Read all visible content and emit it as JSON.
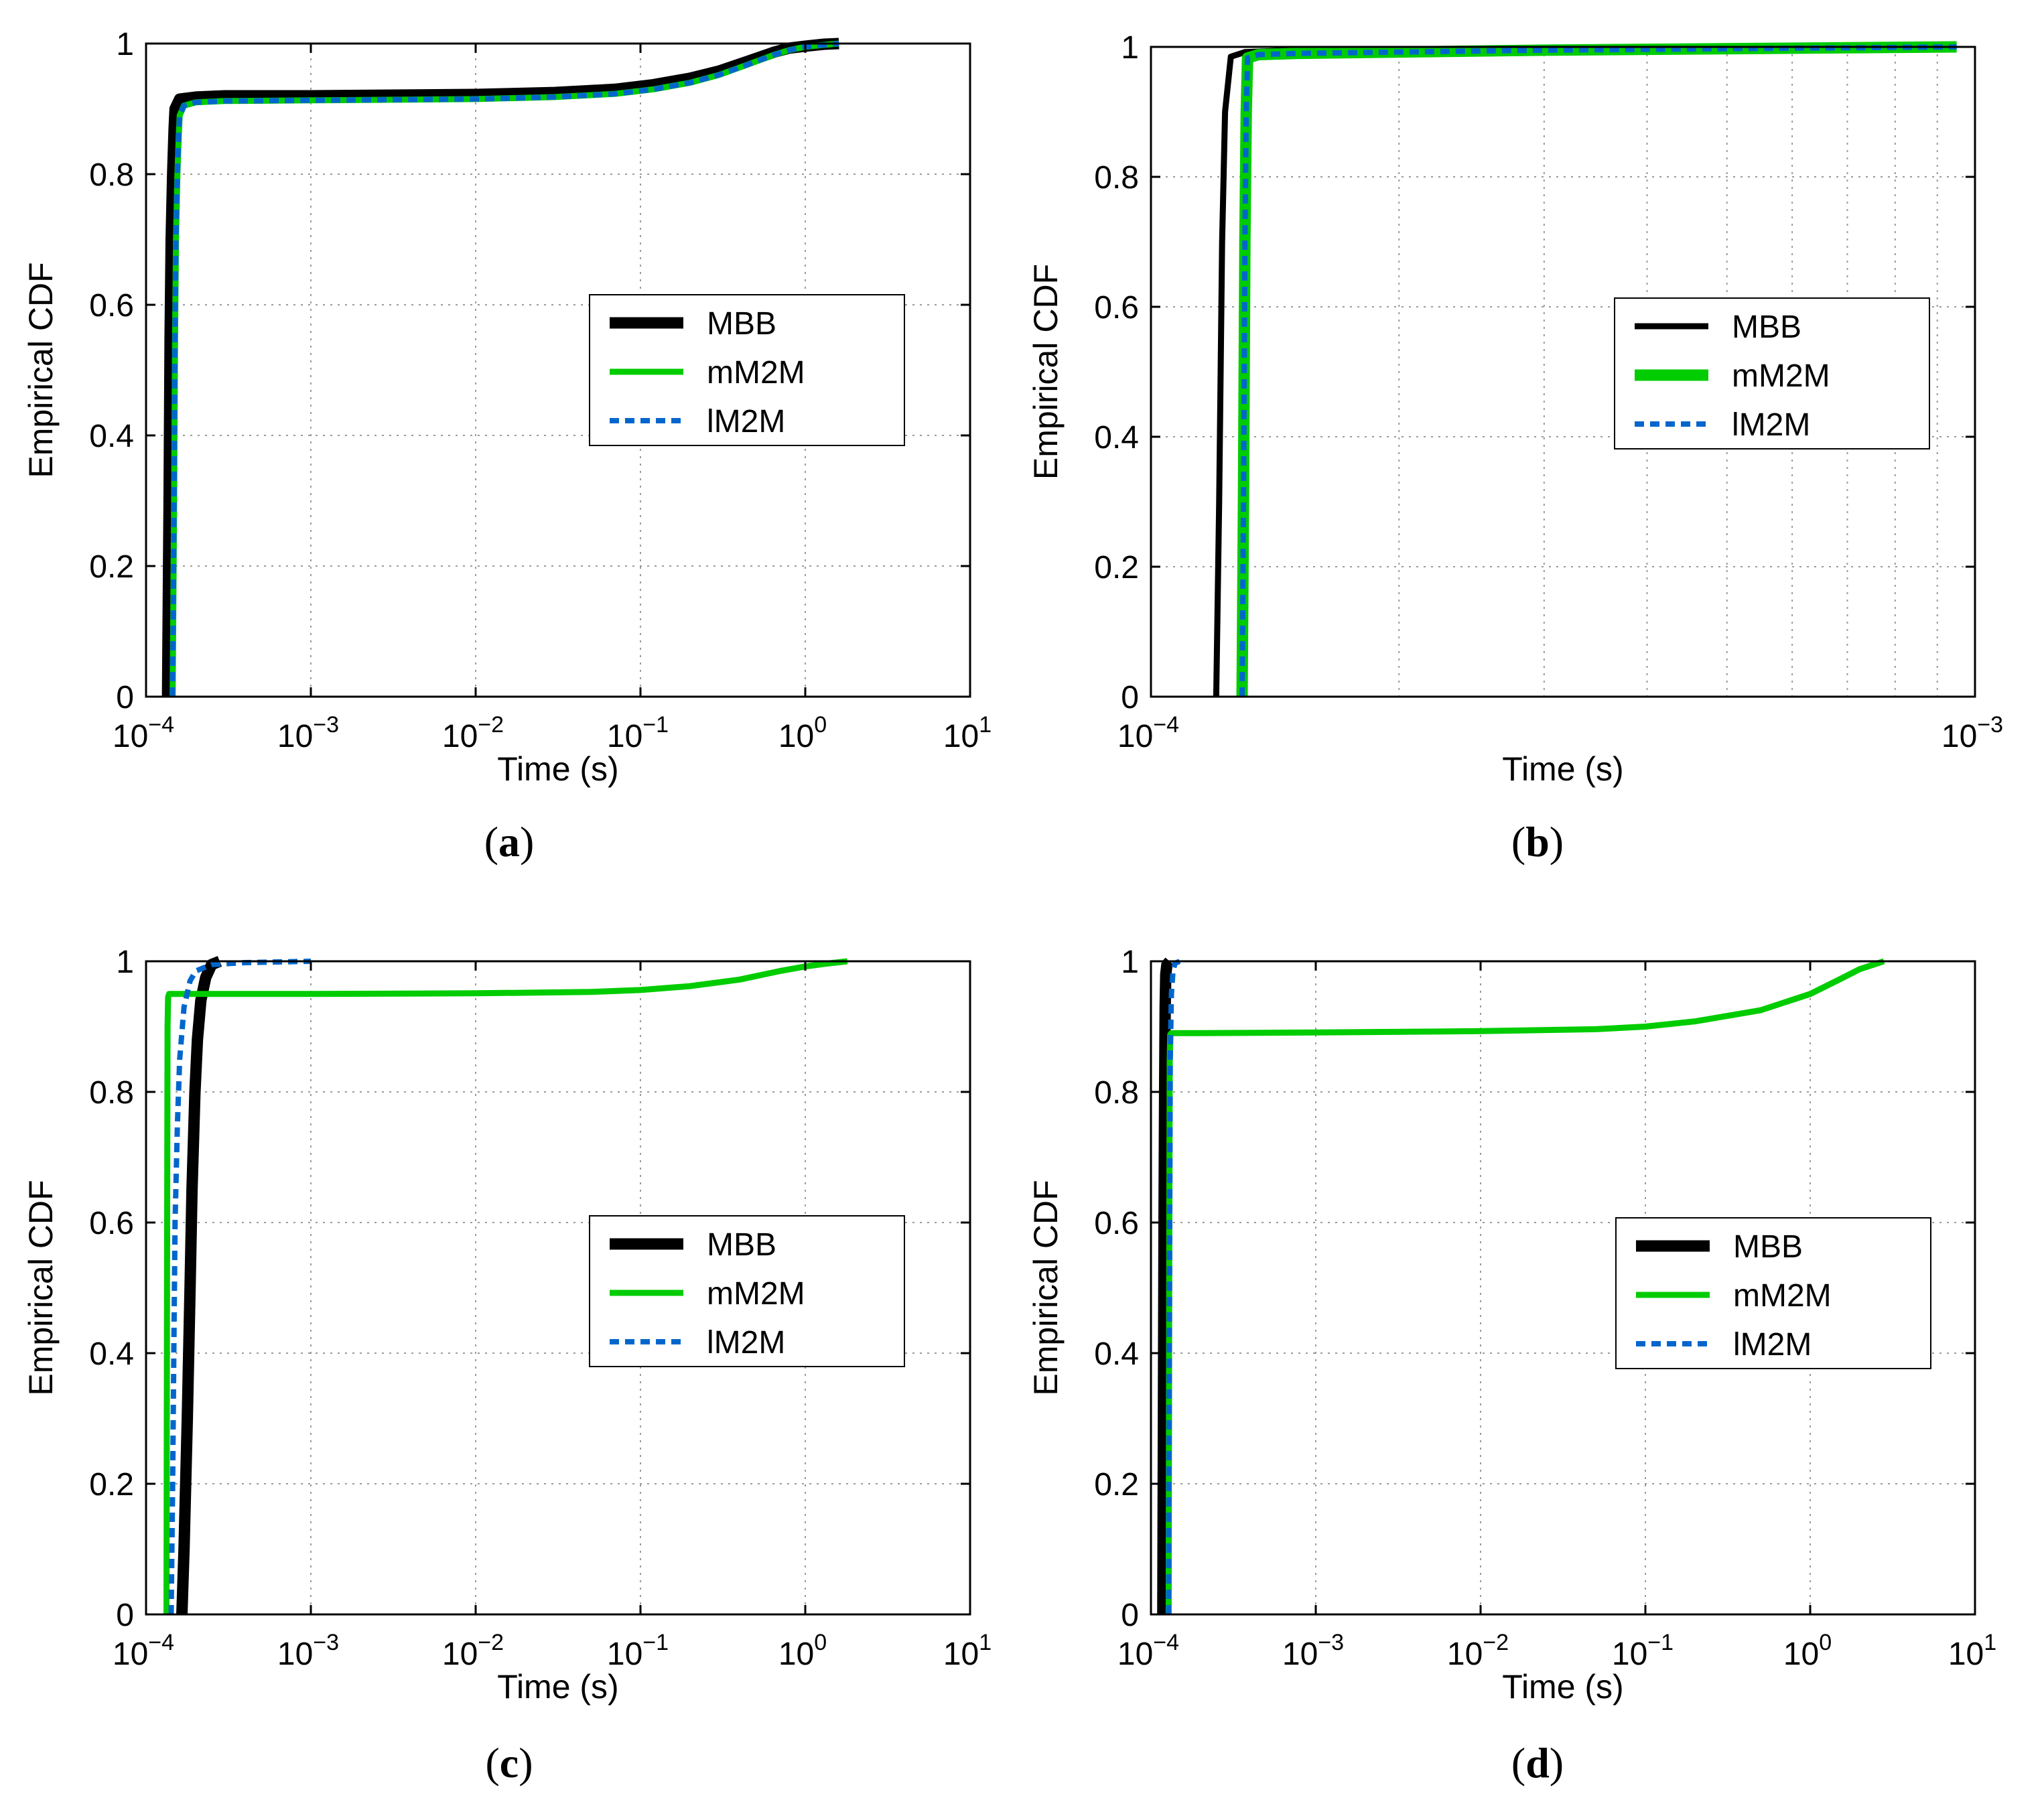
{
  "colors": {
    "MBB": "#000000",
    "mM2M": "#00cc00",
    "lM2M": "#0066cc",
    "grid": "#9a9a9a",
    "axis": "#000000"
  },
  "chart_data": [
    {
      "panel": "a",
      "caption_letter": "a",
      "type": "line",
      "xscale": "log",
      "xlabel": "Time (s)",
      "ylabel": "Empirical CDF",
      "xlim": [
        0.0001,
        10
      ],
      "ylim": [
        0,
        1
      ],
      "xticks": [
        {
          "value": 0.0001,
          "base": "10",
          "exp": "−4"
        },
        {
          "value": 0.001,
          "base": "10",
          "exp": "−3"
        },
        {
          "value": 0.01,
          "base": "10",
          "exp": "−2"
        },
        {
          "value": 0.1,
          "base": "10",
          "exp": "−1"
        },
        {
          "value": 1,
          "base": "10",
          "exp": "0"
        },
        {
          "value": 10,
          "base": "10",
          "exp": "1"
        }
      ],
      "yticks": [
        {
          "value": 0,
          "label": "0"
        },
        {
          "value": 0.2,
          "label": "0.2"
        },
        {
          "value": 0.4,
          "label": "0.4"
        },
        {
          "value": 0.6,
          "label": "0.6"
        },
        {
          "value": 0.8,
          "label": "0.8"
        },
        {
          "value": 1,
          "label": "1"
        }
      ],
      "minor_grid": false,
      "legend": {
        "position": "center-right"
      },
      "series": [
        {
          "name": "MBB",
          "style": "solid",
          "weight": "thick",
          "x": [
            0.000135,
            0.000138,
            0.00014,
            0.000142,
            0.000145,
            0.000148,
            0.00015,
            0.00016,
            0.0002,
            0.0003,
            0.001,
            0.01,
            0.03,
            0.07,
            0.12,
            0.2,
            0.3,
            0.45,
            0.65,
            0.8,
            1.0,
            1.3,
            1.6
          ],
          "y": [
            0,
            0.3,
            0.55,
            0.7,
            0.8,
            0.87,
            0.9,
            0.915,
            0.918,
            0.92,
            0.92,
            0.922,
            0.925,
            0.93,
            0.937,
            0.947,
            0.958,
            0.973,
            0.987,
            0.993,
            0.996,
            0.999,
            1.0
          ]
        },
        {
          "name": "mM2M",
          "style": "solid",
          "weight": "medium",
          "x": [
            0.000145,
            0.000148,
            0.00015,
            0.000152,
            0.000155,
            0.000158,
            0.00016,
            0.00017,
            0.0002,
            0.0003,
            0.001,
            0.01,
            0.03,
            0.07,
            0.12,
            0.2,
            0.3,
            0.45,
            0.65,
            0.8,
            1.0,
            1.3,
            1.6
          ],
          "y": [
            0,
            0.3,
            0.55,
            0.7,
            0.8,
            0.86,
            0.89,
            0.905,
            0.91,
            0.912,
            0.913,
            0.915,
            0.918,
            0.923,
            0.93,
            0.94,
            0.952,
            0.968,
            0.983,
            0.99,
            0.995,
            0.998,
            1.0
          ]
        },
        {
          "name": "lM2M",
          "style": "dashed",
          "weight": "medium",
          "x": [
            0.000145,
            0.000148,
            0.00015,
            0.000152,
            0.000155,
            0.000158,
            0.00016,
            0.00017,
            0.0002,
            0.0003,
            0.001,
            0.01,
            0.03,
            0.07,
            0.12,
            0.2,
            0.3,
            0.45,
            0.65,
            0.8,
            1.0,
            1.3,
            1.6
          ],
          "y": [
            0,
            0.3,
            0.55,
            0.7,
            0.8,
            0.86,
            0.89,
            0.905,
            0.91,
            0.912,
            0.913,
            0.915,
            0.918,
            0.923,
            0.93,
            0.94,
            0.952,
            0.968,
            0.983,
            0.99,
            0.995,
            0.998,
            1.0
          ]
        }
      ]
    },
    {
      "panel": "b",
      "caption_letter": "b",
      "type": "line",
      "xscale": "log",
      "xlabel": "Time (s)",
      "ylabel": "Empirical CDF",
      "xlim": [
        0.0001,
        0.001
      ],
      "ylim": [
        0,
        1
      ],
      "xticks": [
        {
          "value": 0.0001,
          "base": "10",
          "exp": "−4"
        },
        {
          "value": 0.001,
          "base": "10",
          "exp": "−3"
        }
      ],
      "yticks": [
        {
          "value": 0,
          "label": "0"
        },
        {
          "value": 0.2,
          "label": "0.2"
        },
        {
          "value": 0.4,
          "label": "0.4"
        },
        {
          "value": 0.6,
          "label": "0.6"
        },
        {
          "value": 0.8,
          "label": "0.8"
        },
        {
          "value": 1,
          "label": "1"
        }
      ],
      "minor_grid": true,
      "legend": {
        "position": "center-right"
      },
      "series": [
        {
          "name": "MBB",
          "style": "solid",
          "weight": "medium",
          "x": [
            0.00012,
            0.000121,
            0.000122,
            0.000123,
            0.000125,
            0.00013,
            0.00015,
            0.0003,
            0.00095
          ],
          "y": [
            0,
            0.3,
            0.7,
            0.9,
            0.985,
            0.992,
            0.995,
            0.998,
            1.0
          ]
        },
        {
          "name": "mM2M",
          "style": "solid",
          "weight": "thick",
          "x": [
            0.000129,
            0.0001295,
            0.00013,
            0.0001305,
            0.000131,
            0.000135,
            0.00015,
            0.0003,
            0.00095
          ],
          "y": [
            0,
            0.3,
            0.7,
            0.9,
            0.983,
            0.988,
            0.99,
            0.995,
            1.0
          ]
        },
        {
          "name": "lM2M",
          "style": "dashed",
          "weight": "medium",
          "x": [
            0.000129,
            0.0001295,
            0.00013,
            0.0001305,
            0.000131,
            0.000135,
            0.00015,
            0.0003,
            0.00095
          ],
          "y": [
            0,
            0.3,
            0.7,
            0.9,
            0.983,
            0.988,
            0.99,
            0.995,
            1.0
          ]
        }
      ]
    },
    {
      "panel": "c",
      "caption_letter": "c",
      "type": "line",
      "xscale": "log",
      "xlabel": "Time (s)",
      "ylabel": "Empirical CDF",
      "xlim": [
        0.0001,
        10
      ],
      "ylim": [
        0,
        1
      ],
      "xticks": [
        {
          "value": 0.0001,
          "base": "10",
          "exp": "−4"
        },
        {
          "value": 0.001,
          "base": "10",
          "exp": "−3"
        },
        {
          "value": 0.01,
          "base": "10",
          "exp": "−2"
        },
        {
          "value": 0.1,
          "base": "10",
          "exp": "−1"
        },
        {
          "value": 1,
          "base": "10",
          "exp": "0"
        },
        {
          "value": 10,
          "base": "10",
          "exp": "1"
        }
      ],
      "yticks": [
        {
          "value": 0,
          "label": "0"
        },
        {
          "value": 0.2,
          "label": "0.2"
        },
        {
          "value": 0.4,
          "label": "0.4"
        },
        {
          "value": 0.6,
          "label": "0.6"
        },
        {
          "value": 0.8,
          "label": "0.8"
        },
        {
          "value": 1,
          "label": "1"
        }
      ],
      "minor_grid": false,
      "legend": {
        "position": "center-right"
      },
      "series": [
        {
          "name": "MBB",
          "style": "solid",
          "weight": "thick",
          "x": [
            0.000165,
            0.00017,
            0.000178,
            0.000185,
            0.00019,
            0.000198,
            0.000205,
            0.000215,
            0.00023,
            0.00025,
            0.00028
          ],
          "y": [
            0,
            0.1,
            0.3,
            0.5,
            0.65,
            0.8,
            0.88,
            0.94,
            0.975,
            0.995,
            1.0
          ]
        },
        {
          "name": "mM2M",
          "style": "solid",
          "weight": "medium",
          "x": [
            0.000133,
            0.000134,
            0.000135,
            0.000136,
            0.000138,
            0.0002,
            0.001,
            0.01,
            0.05,
            0.1,
            0.2,
            0.4,
            0.7,
            1.0,
            1.3,
            1.8
          ],
          "y": [
            0,
            0.5,
            0.9,
            0.945,
            0.95,
            0.95,
            0.95,
            0.951,
            0.953,
            0.956,
            0.962,
            0.972,
            0.985,
            0.992,
            0.996,
            1.0
          ]
        },
        {
          "name": "lM2M",
          "style": "dashed",
          "weight": "medium",
          "x": [
            0.000142,
            0.000145,
            0.000148,
            0.00015,
            0.000155,
            0.00016,
            0.00017,
            0.000185,
            0.0002,
            0.00025,
            0.0004,
            0.001
          ],
          "y": [
            0,
            0.2,
            0.45,
            0.6,
            0.75,
            0.85,
            0.93,
            0.97,
            0.985,
            0.995,
            0.998,
            1.0
          ]
        }
      ]
    },
    {
      "panel": "d",
      "caption_letter": "d",
      "type": "line",
      "xscale": "log",
      "xlabel": "Time (s)",
      "ylabel": "Empirical CDF",
      "xlim": [
        0.0001,
        10
      ],
      "ylim": [
        0,
        1
      ],
      "xticks": [
        {
          "value": 0.0001,
          "base": "10",
          "exp": "−4"
        },
        {
          "value": 0.001,
          "base": "10",
          "exp": "−3"
        },
        {
          "value": 0.01,
          "base": "10",
          "exp": "−2"
        },
        {
          "value": 0.1,
          "base": "10",
          "exp": "−1"
        },
        {
          "value": 1,
          "base": "10",
          "exp": "0"
        },
        {
          "value": 10,
          "base": "10",
          "exp": "1"
        }
      ],
      "yticks": [
        {
          "value": 0,
          "label": "0"
        },
        {
          "value": 0.2,
          "label": "0.2"
        },
        {
          "value": 0.4,
          "label": "0.4"
        },
        {
          "value": 0.6,
          "label": "0.6"
        },
        {
          "value": 0.8,
          "label": "0.8"
        },
        {
          "value": 1,
          "label": "1"
        }
      ],
      "minor_grid": false,
      "legend": {
        "position": "center-right"
      },
      "series": [
        {
          "name": "MBB",
          "style": "solid",
          "weight": "thick",
          "x": [
            0.000118,
            0.000119,
            0.00012,
            0.000121,
            0.000122,
            0.000123,
            0.000125,
            0.00013
          ],
          "y": [
            0,
            0.3,
            0.6,
            0.8,
            0.93,
            0.98,
            0.995,
            1.0
          ]
        },
        {
          "name": "mM2M",
          "style": "solid",
          "weight": "medium",
          "x": [
            0.000128,
            0.000129,
            0.00013,
            0.000131,
            0.000133,
            0.0002,
            0.001,
            0.01,
            0.05,
            0.1,
            0.2,
            0.5,
            1.0,
            1.5,
            2.0,
            2.8
          ],
          "y": [
            0,
            0.5,
            0.85,
            0.888,
            0.89,
            0.89,
            0.891,
            0.893,
            0.896,
            0.9,
            0.908,
            0.925,
            0.95,
            0.972,
            0.988,
            1.0
          ]
        },
        {
          "name": "lM2M",
          "style": "dashed",
          "weight": "medium",
          "x": [
            0.000128,
            0.000129,
            0.00013,
            0.000131,
            0.000133,
            0.000136,
            0.00014,
            0.00015
          ],
          "y": [
            0,
            0.3,
            0.6,
            0.85,
            0.95,
            0.985,
            0.997,
            1.0
          ]
        }
      ]
    }
  ]
}
